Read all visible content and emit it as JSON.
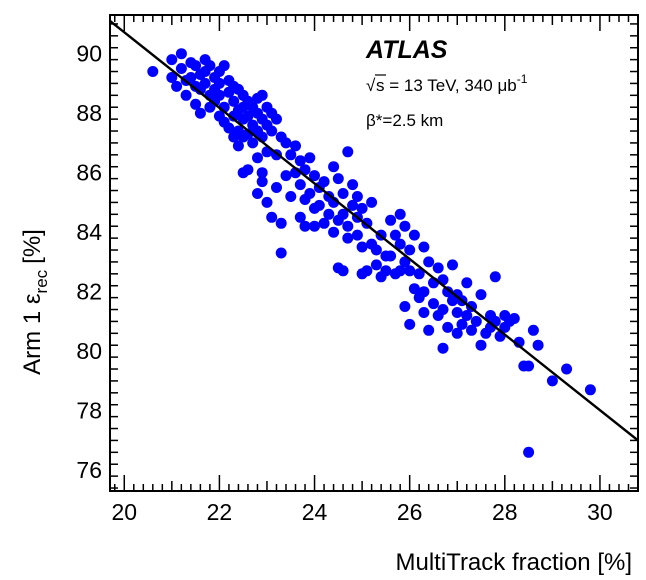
{
  "chart_data": {
    "type": "scatter",
    "title": "",
    "xlabel": "MultiTrack fraction [%]",
    "ylabel_main": "Arm 1 ε",
    "ylabel_sub": "rec",
    "ylabel_unit": "[%]",
    "xlim": [
      19.7,
      30.8
    ],
    "ylim": [
      75.3,
      91.3
    ],
    "x_ticks": [
      20,
      22,
      24,
      26,
      28,
      30
    ],
    "y_ticks": [
      76,
      78,
      80,
      82,
      84,
      86,
      88,
      90
    ],
    "grid": false,
    "marker_color": "#0000ff",
    "fit_line": {
      "color": "#000000",
      "x": [
        19.7,
        30.8
      ],
      "y": [
        91.1,
        77.0
      ]
    },
    "annotations": {
      "experiment": "ATLAS",
      "energy": "s = 13 TeV, 340 μb",
      "energy_sup": "-1",
      "sqrt_symbol": "√",
      "beta": "β*=2.5 km"
    },
    "points": [
      [
        20.6,
        89.4
      ],
      [
        21.0,
        89.8
      ],
      [
        21.0,
        89.2
      ],
      [
        21.1,
        88.9
      ],
      [
        21.2,
        90.0
      ],
      [
        21.2,
        89.5
      ],
      [
        21.3,
        89.1
      ],
      [
        21.3,
        88.6
      ],
      [
        21.4,
        89.7
      ],
      [
        21.4,
        89.2
      ],
      [
        21.5,
        88.9
      ],
      [
        21.5,
        88.3
      ],
      [
        21.5,
        89.6
      ],
      [
        21.6,
        89.3
      ],
      [
        21.6,
        88.8
      ],
      [
        21.6,
        88.0
      ],
      [
        21.7,
        89.8
      ],
      [
        21.7,
        89.4
      ],
      [
        21.7,
        89.0
      ],
      [
        21.8,
        88.6
      ],
      [
        21.8,
        88.2
      ],
      [
        21.8,
        89.6
      ],
      [
        21.9,
        89.2
      ],
      [
        21.9,
        88.8
      ],
      [
        21.9,
        88.4
      ],
      [
        22.0,
        89.4
      ],
      [
        22.0,
        89.0
      ],
      [
        22.0,
        88.6
      ],
      [
        22.0,
        87.9
      ],
      [
        22.1,
        89.6
      ],
      [
        22.1,
        88.2
      ],
      [
        22.1,
        87.7
      ],
      [
        22.2,
        89.1
      ],
      [
        22.2,
        88.7
      ],
      [
        22.2,
        87.5
      ],
      [
        22.3,
        88.9
      ],
      [
        22.3,
        88.4
      ],
      [
        22.3,
        87.9
      ],
      [
        22.3,
        87.2
      ],
      [
        22.4,
        88.8
      ],
      [
        22.4,
        88.1
      ],
      [
        22.4,
        87.4
      ],
      [
        22.4,
        86.9
      ],
      [
        22.5,
        88.6
      ],
      [
        22.5,
        88.2
      ],
      [
        22.5,
        87.8
      ],
      [
        22.5,
        87.2
      ],
      [
        22.5,
        86.0
      ],
      [
        22.6,
        88.4
      ],
      [
        22.6,
        87.9
      ],
      [
        22.6,
        87.3
      ],
      [
        22.6,
        86.1
      ],
      [
        22.7,
        88.2
      ],
      [
        22.7,
        87.6
      ],
      [
        22.7,
        87.0
      ],
      [
        22.8,
        88.5
      ],
      [
        22.8,
        88.0
      ],
      [
        22.8,
        87.4
      ],
      [
        22.8,
        86.5
      ],
      [
        22.8,
        85.3
      ],
      [
        22.9,
        88.6
      ],
      [
        22.9,
        87.8
      ],
      [
        22.9,
        87.2
      ],
      [
        22.9,
        86.0
      ],
      [
        22.9,
        85.7
      ],
      [
        23.0,
        88.2
      ],
      [
        23.0,
        87.6
      ],
      [
        23.0,
        86.7
      ],
      [
        23.0,
        85.0
      ],
      [
        23.1,
        88.0
      ],
      [
        23.1,
        87.4
      ],
      [
        23.1,
        84.5
      ],
      [
        23.2,
        87.8
      ],
      [
        23.2,
        86.6
      ],
      [
        23.2,
        85.5
      ],
      [
        23.3,
        87.2
      ],
      [
        23.3,
        84.3
      ],
      [
        23.3,
        83.3
      ],
      [
        23.4,
        87.0
      ],
      [
        23.4,
        85.9
      ],
      [
        23.5,
        86.6
      ],
      [
        23.5,
        85.2
      ],
      [
        23.6,
        86.9
      ],
      [
        23.6,
        86.0
      ],
      [
        23.7,
        86.4
      ],
      [
        23.7,
        85.6
      ],
      [
        23.7,
        84.5
      ],
      [
        23.8,
        86.1
      ],
      [
        23.8,
        85.1
      ],
      [
        23.8,
        84.2
      ],
      [
        23.9,
        86.5
      ],
      [
        23.9,
        85.3
      ],
      [
        24.0,
        85.9
      ],
      [
        24.0,
        84.8
      ],
      [
        24.0,
        84.2
      ],
      [
        24.1,
        85.5
      ],
      [
        24.1,
        84.9
      ],
      [
        24.2,
        85.7
      ],
      [
        24.2,
        84.3
      ],
      [
        24.3,
        85.2
      ],
      [
        24.3,
        84.6
      ],
      [
        24.4,
        85.0
      ],
      [
        24.4,
        84.0
      ],
      [
        24.4,
        86.2
      ],
      [
        24.5,
        85.8
      ],
      [
        24.5,
        84.4
      ],
      [
        24.5,
        82.8
      ],
      [
        24.6,
        85.3
      ],
      [
        24.6,
        84.6
      ],
      [
        24.6,
        82.7
      ],
      [
        24.7,
        86.7
      ],
      [
        24.7,
        84.2
      ],
      [
        24.7,
        83.8
      ],
      [
        24.8,
        85.6
      ],
      [
        24.8,
        84.9
      ],
      [
        24.9,
        85.2
      ],
      [
        24.9,
        84.5
      ],
      [
        24.9,
        83.9
      ],
      [
        25.0,
        84.8
      ],
      [
        25.0,
        83.5
      ],
      [
        25.0,
        82.6
      ],
      [
        25.1,
        84.3
      ],
      [
        25.1,
        82.7
      ],
      [
        25.2,
        85.0
      ],
      [
        25.2,
        83.6
      ],
      [
        25.3,
        83.4
      ],
      [
        25.3,
        82.9
      ],
      [
        25.4,
        83.9
      ],
      [
        25.4,
        82.5
      ],
      [
        25.5,
        83.2
      ],
      [
        25.5,
        82.7
      ],
      [
        25.6,
        84.4
      ],
      [
        25.6,
        83.2
      ],
      [
        25.7,
        83.9
      ],
      [
        25.7,
        82.6
      ],
      [
        25.8,
        84.6
      ],
      [
        25.8,
        83.6
      ],
      [
        25.8,
        82.7
      ],
      [
        25.9,
        84.2
      ],
      [
        25.9,
        83.0
      ],
      [
        25.9,
        81.5
      ],
      [
        26.0,
        83.4
      ],
      [
        26.0,
        82.7
      ],
      [
        26.0,
        80.9
      ],
      [
        26.1,
        83.9
      ],
      [
        26.1,
        82.1
      ],
      [
        26.2,
        82.6
      ],
      [
        26.2,
        81.8
      ],
      [
        26.3,
        83.5
      ],
      [
        26.3,
        82.0
      ],
      [
        26.3,
        81.3
      ],
      [
        26.4,
        83.0
      ],
      [
        26.4,
        80.7
      ],
      [
        26.5,
        82.3
      ],
      [
        26.5,
        81.6
      ],
      [
        26.6,
        82.8
      ],
      [
        26.6,
        81.2
      ],
      [
        26.7,
        82.4
      ],
      [
        26.7,
        81.4
      ],
      [
        26.7,
        80.1
      ],
      [
        26.8,
        82.0
      ],
      [
        26.8,
        80.8
      ],
      [
        26.9,
        81.7
      ],
      [
        26.9,
        82.9
      ],
      [
        27.0,
        81.3
      ],
      [
        27.0,
        81.9
      ],
      [
        27.0,
        80.6
      ],
      [
        27.1,
        81.7
      ],
      [
        27.1,
        80.9
      ],
      [
        27.2,
        82.3
      ],
      [
        27.2,
        81.2
      ],
      [
        27.3,
        81.5
      ],
      [
        27.3,
        80.7
      ],
      [
        27.4,
        81.0
      ],
      [
        27.5,
        81.9
      ],
      [
        27.5,
        80.2
      ],
      [
        27.6,
        80.6
      ],
      [
        27.7,
        81.2
      ],
      [
        27.7,
        80.8
      ],
      [
        27.8,
        82.5
      ],
      [
        27.8,
        81.0
      ],
      [
        27.9,
        80.5
      ],
      [
        28.0,
        81.2
      ],
      [
        28.0,
        80.8
      ],
      [
        28.1,
        81.0
      ],
      [
        28.2,
        81.1
      ],
      [
        28.3,
        80.3
      ],
      [
        28.4,
        79.5
      ],
      [
        28.5,
        79.5
      ],
      [
        28.5,
        76.6
      ],
      [
        28.6,
        80.7
      ],
      [
        28.7,
        80.2
      ],
      [
        29.0,
        79.0
      ],
      [
        29.3,
        79.4
      ],
      [
        29.8,
        78.7
      ]
    ]
  }
}
